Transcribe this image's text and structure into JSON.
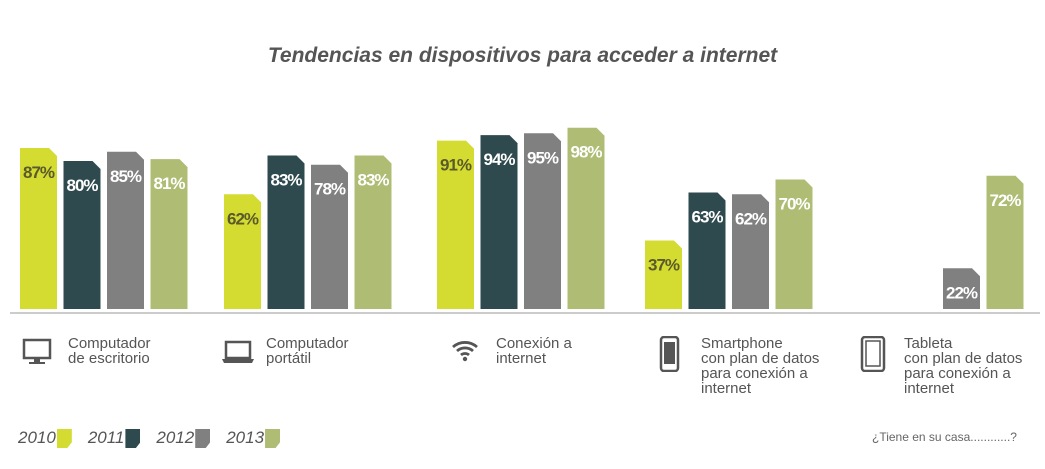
{
  "title": "Tendencias en dispositivos para acceder a internet",
  "chart_data": {
    "type": "bar",
    "title": "Tendencias en dispositivos para acceder a internet",
    "categories": [
      "Computador de escritorio",
      "Computador portátil",
      "Conexión a internet",
      "Smartphone con plan de datos para conexión a internet",
      "Tableta con plan de datos para conexión a internet"
    ],
    "category_lines": [
      [
        "Computador",
        "de escritorio"
      ],
      [
        "Computador",
        "portátil"
      ],
      [
        "Conexión a",
        "internet"
      ],
      [
        "Smartphone",
        "con plan de datos",
        "para conexión a",
        "internet"
      ],
      [
        "Tableta",
        "con plan de datos",
        "para conexión a",
        "internet"
      ]
    ],
    "icons": [
      "desktop-icon",
      "laptop-icon",
      "wifi-icon",
      "smartphone-icon",
      "tablet-icon"
    ],
    "series": [
      {
        "name": "2010",
        "color": "#d4dc32",
        "label_color": "#5a5a2a",
        "values": [
          87,
          62,
          91,
          37,
          null
        ]
      },
      {
        "name": "2011",
        "color": "#2f4a4e",
        "label_color": "#ffffff",
        "values": [
          80,
          83,
          94,
          63,
          null
        ]
      },
      {
        "name": "2012",
        "color": "#808080",
        "label_color": "#ffffff",
        "values": [
          85,
          78,
          95,
          62,
          22
        ]
      },
      {
        "name": "2013",
        "color": "#aebc74",
        "label_color": "#ffffff",
        "values": [
          81,
          83,
          98,
          70,
          72
        ]
      }
    ],
    "ylim": [
      0,
      100
    ],
    "legend": "bottom-left"
  },
  "note": "¿Tiene en su  casa............?"
}
